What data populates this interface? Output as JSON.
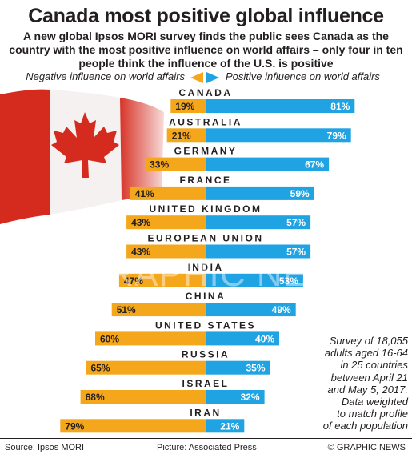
{
  "title": "Canada most positive global influence",
  "subtitle": "A new global Ipsos MORI survey finds the public sees Canada as the country with the most positive influence on world affairs – only four in ten people think the influence of the U.S. is positive",
  "legend": {
    "negative_label": "Negative influence on world affairs",
    "positive_label": "Positive influence on world affairs"
  },
  "colors": {
    "negative": "#f5a71c",
    "positive": "#1fa3e2",
    "flag_red": "#d52b1e"
  },
  "chart_data": {
    "type": "bar",
    "orientation": "diverging-horizontal",
    "categories": [
      "CANADA",
      "AUSTRALIA",
      "GERMANY",
      "FRANCE",
      "UNITED KINGDOM",
      "EUROPEAN UNION",
      "INDIA",
      "CHINA",
      "UNITED STATES",
      "RUSSIA",
      "ISRAEL",
      "IRAN"
    ],
    "series": [
      {
        "name": "Negative influence on world affairs",
        "values": [
          19,
          21,
          33,
          41,
          43,
          43,
          47,
          51,
          60,
          65,
          68,
          79
        ]
      },
      {
        "name": "Positive influence on world affairs",
        "values": [
          81,
          79,
          67,
          59,
          57,
          57,
          53,
          49,
          40,
          35,
          32,
          21
        ]
      }
    ],
    "unit": "%"
  },
  "note": "Survey of 18,055\nadults aged 16-64\nin 25 countries\nbetween April 21\nand May 5, 2017.\nData weighted\nto match profile\nof each population",
  "footer": {
    "source": "Source: Ipsos MORI",
    "picture": "Picture: Associated Press",
    "credit": "© GRAPHIC NEWS"
  },
  "watermark": "GRAPHIC NEWS"
}
